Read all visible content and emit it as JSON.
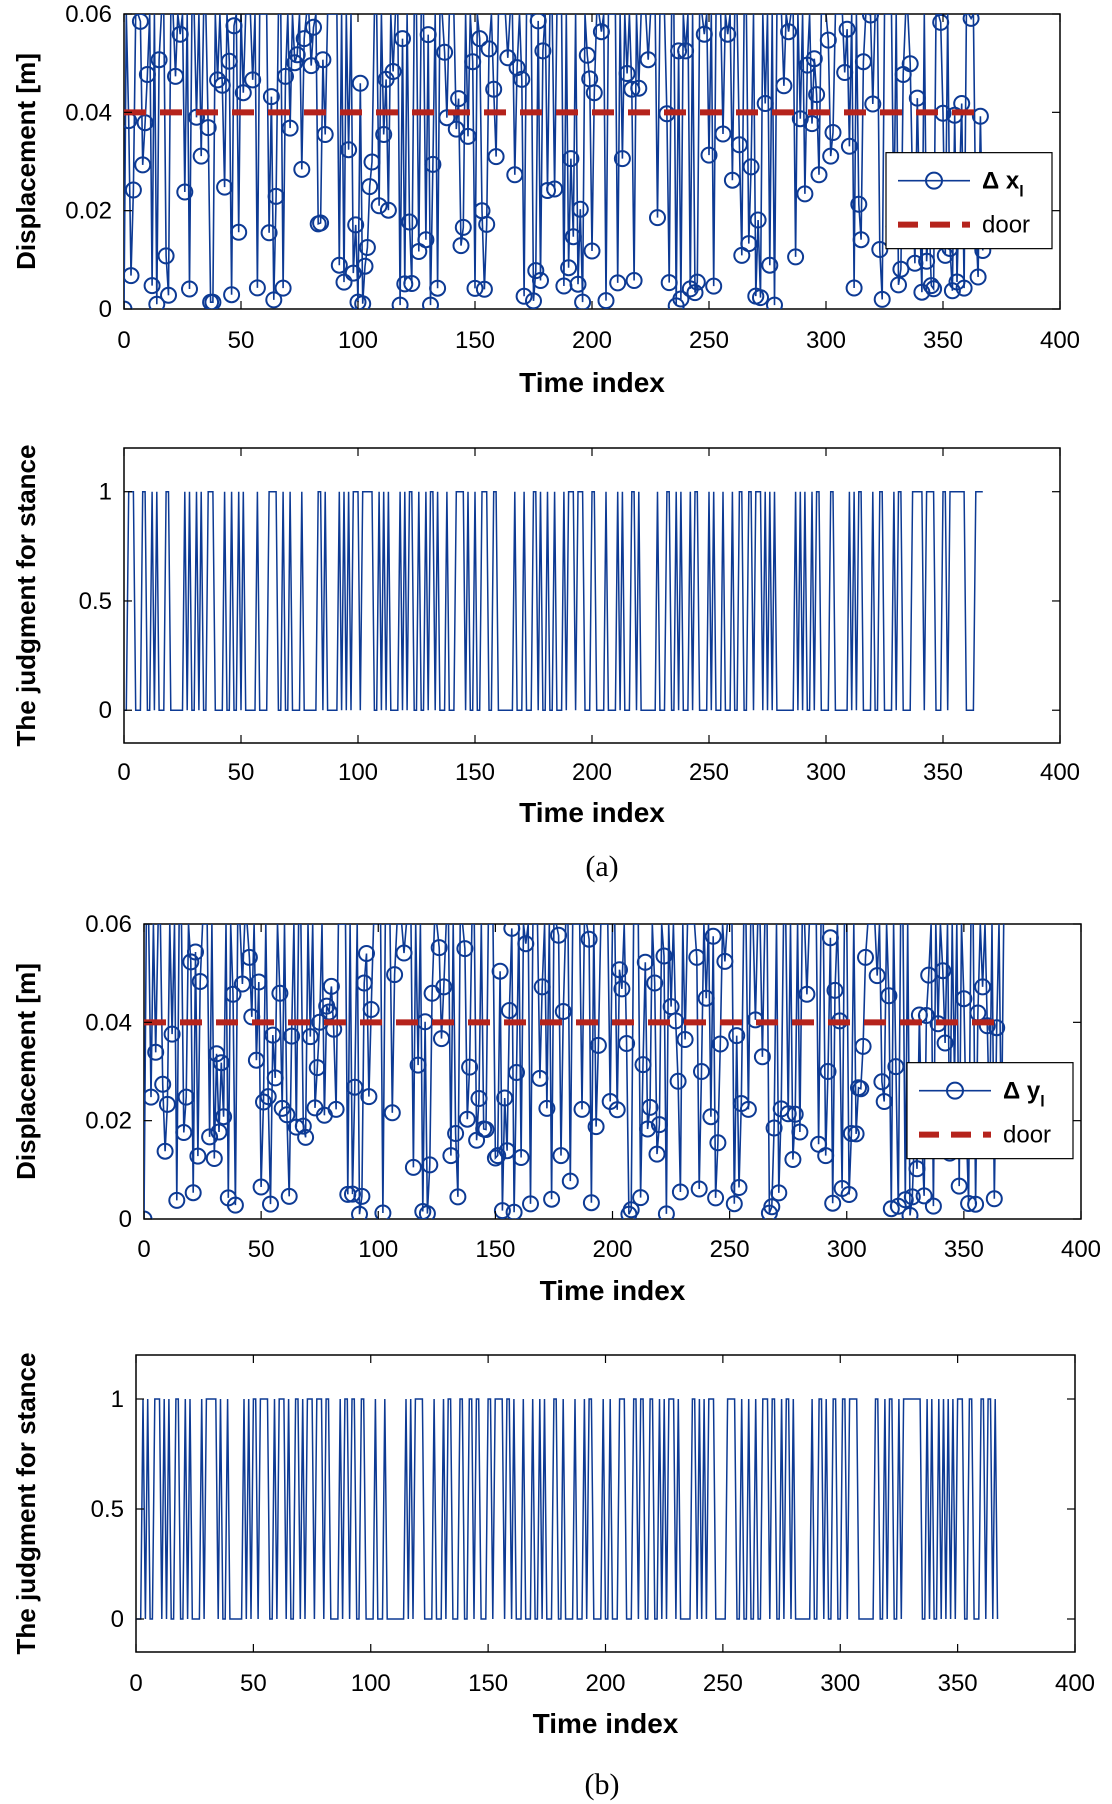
{
  "colors": {
    "series": "#0d3a94",
    "door": "#b5231c",
    "axis": "#000000"
  },
  "captions": [
    "(a)",
    "(b)"
  ],
  "chart_data": [
    {
      "id": "a_disp",
      "type": "line",
      "xlabel": "Time index",
      "ylabel": "Displacement [m]",
      "xlim": [
        0,
        400
      ],
      "ylim": [
        0,
        0.06
      ],
      "xticks": [
        0,
        50,
        100,
        150,
        200,
        250,
        300,
        350,
        400
      ],
      "yticks": [
        0,
        0.02,
        0.04,
        0.06
      ],
      "xtick_labels": [
        "0",
        "50",
        "100",
        "150",
        "200",
        "250",
        "300",
        "350",
        "400"
      ],
      "ytick_labels": [
        "0",
        "0.02",
        "0.04",
        "0.06"
      ],
      "legend": {
        "position": "right",
        "entries": [
          "Δ x",
          "door"
        ],
        "subscript": "l"
      },
      "series_name": "Δ x_l",
      "length": 368,
      "threshold": 0.04,
      "seed": 7
    },
    {
      "id": "a_judge",
      "type": "step",
      "xlabel": "Time index",
      "ylabel": "The judgment for stance",
      "xlim": [
        0,
        400
      ],
      "ylim": [
        -0.15,
        1.2
      ],
      "xticks": [
        0,
        50,
        100,
        150,
        200,
        250,
        300,
        350,
        400
      ],
      "yticks": [
        0,
        0.5,
        1
      ],
      "xtick_labels": [
        "0",
        "50",
        "100",
        "150",
        "200",
        "250",
        "300",
        "350",
        "400"
      ],
      "ytick_labels": [
        "0",
        "0.5",
        "1"
      ],
      "derived_from": "a_disp"
    },
    {
      "id": "b_disp",
      "type": "line",
      "xlabel": "Time index",
      "ylabel": "Displacement [m]",
      "xlim": [
        0,
        400
      ],
      "ylim": [
        0,
        0.06
      ],
      "xticks": [
        0,
        50,
        100,
        150,
        200,
        250,
        300,
        350,
        400
      ],
      "yticks": [
        0,
        0.02,
        0.04,
        0.06
      ],
      "xtick_labels": [
        "0",
        "50",
        "100",
        "150",
        "200",
        "250",
        "300",
        "350",
        "400"
      ],
      "ytick_labels": [
        "0",
        "0.02",
        "0.04",
        "0.06"
      ],
      "legend": {
        "position": "right",
        "entries": [
          "Δ y",
          "door"
        ],
        "subscript": "l"
      },
      "series_name": "Δ y_l",
      "length": 368,
      "threshold": 0.04,
      "seed": 19
    },
    {
      "id": "b_judge",
      "type": "step",
      "xlabel": "Time index",
      "ylabel": "The judgment for stance",
      "xlim": [
        0,
        400
      ],
      "ylim": [
        -0.15,
        1.2
      ],
      "xticks": [
        0,
        50,
        100,
        150,
        200,
        250,
        300,
        350,
        400
      ],
      "yticks": [
        0,
        0.5,
        1
      ],
      "xtick_labels": [
        "0",
        "50",
        "100",
        "150",
        "200",
        "250",
        "300",
        "350",
        "400"
      ],
      "ytick_labels": [
        "0",
        "0.5",
        "1"
      ],
      "derived_from": "b_disp"
    }
  ]
}
